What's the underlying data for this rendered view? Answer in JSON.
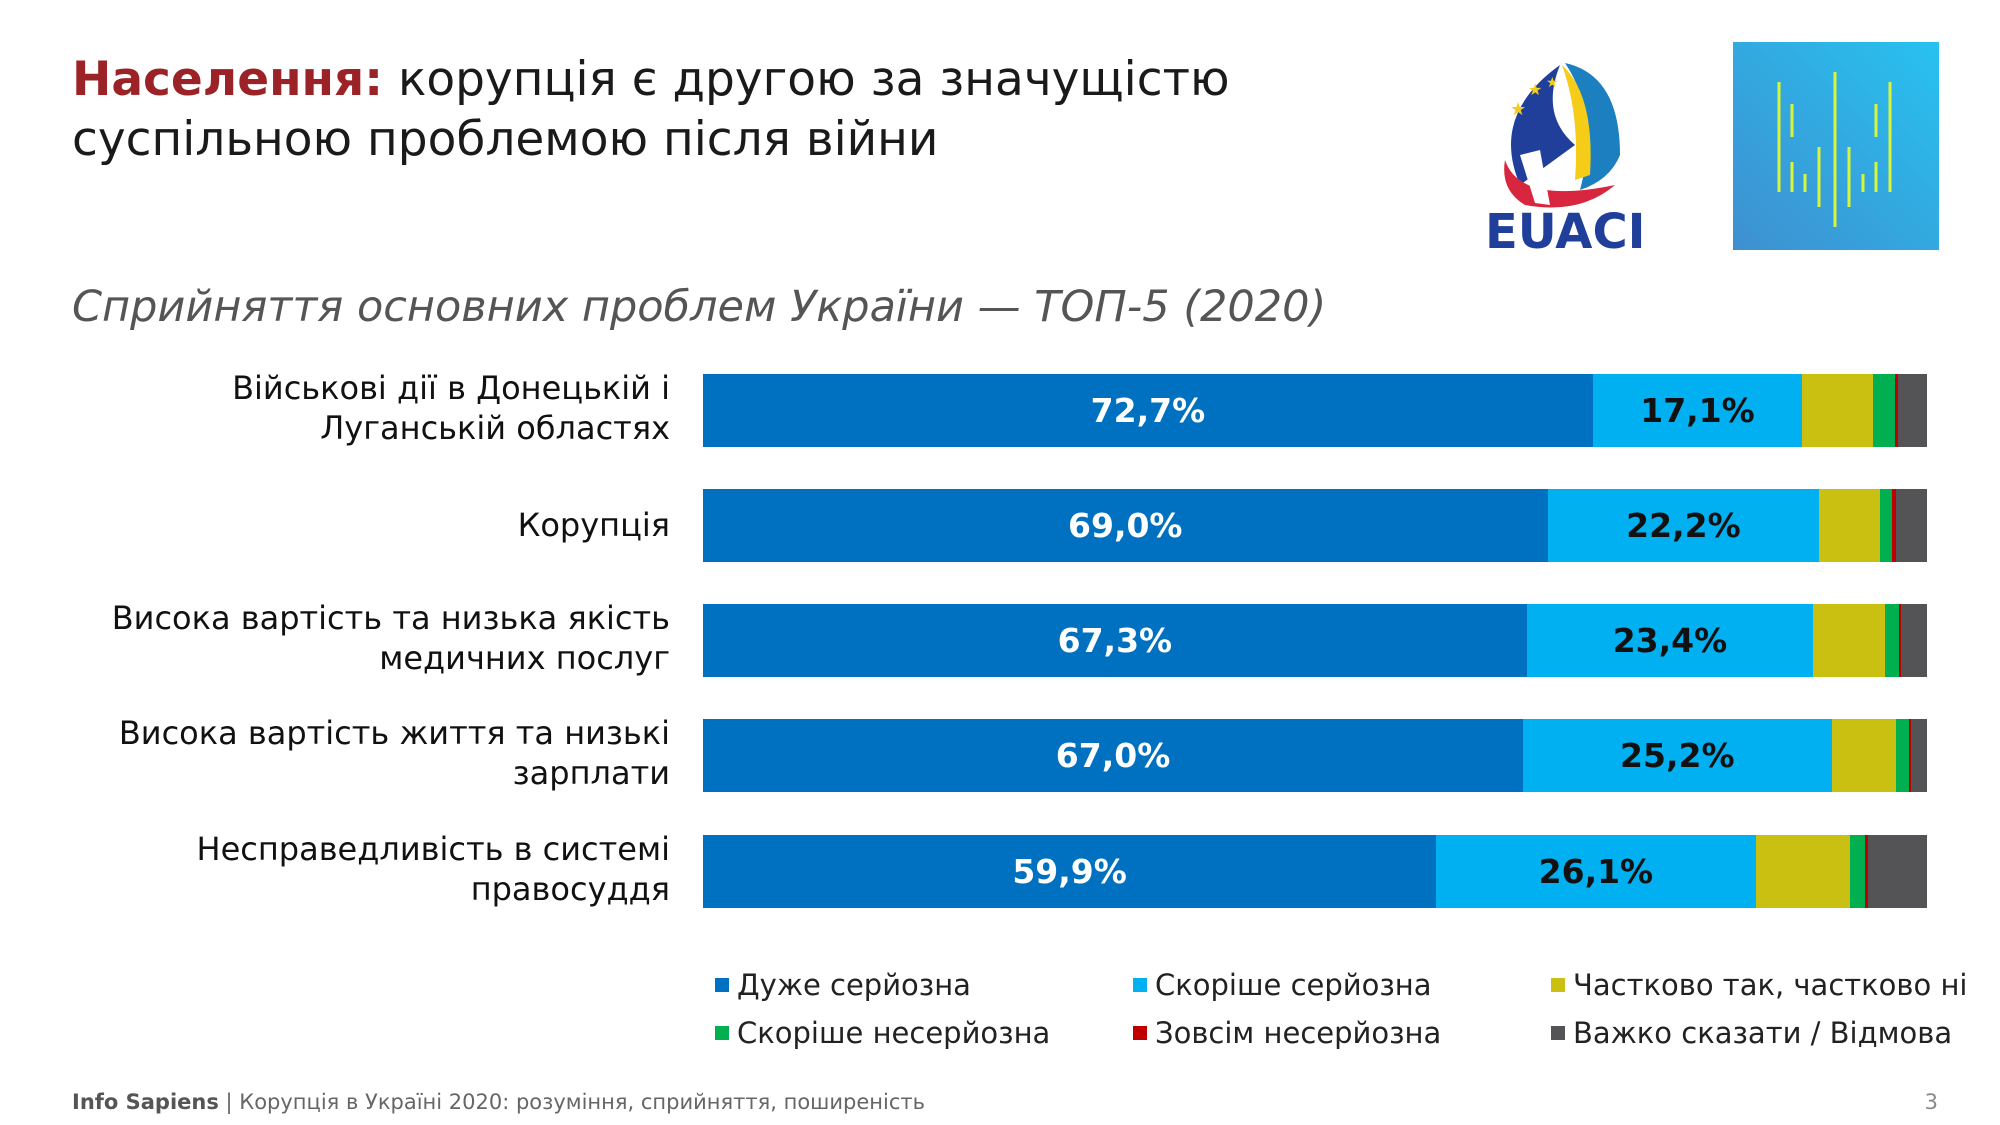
{
  "title": {
    "highlight": "Населення:",
    "rest": " корупція є другою за значущістю суспільною проблемою після війни"
  },
  "logos": {
    "euaci": "EUACI"
  },
  "footer": {
    "brand": "Info Sapiens",
    "separator": " | ",
    "text": "Корупція в Україні 2020: розуміння, сприйняття, поширеність",
    "page": "3"
  },
  "chart_data": {
    "type": "bar",
    "orientation": "horizontal-stacked-100",
    "title": "Сприйняття основних проблем України — ТОП-5 (2020)",
    "categories": [
      "Військові дії в Донецькій і Луганській областях",
      "Корупція",
      "Висока вартість та низька якість медичних послуг",
      "Висока вартість життя та низькі зарплати",
      "Несправедливість в системі правосуддя"
    ],
    "series": [
      {
        "name": "Дуже серйозна",
        "color": "#0070c0",
        "values": [
          72.7,
          69.0,
          67.3,
          67.0,
          59.9
        ],
        "labels": [
          "72,7%",
          "69,0%",
          "67,3%",
          "67,0%",
          "59,9%"
        ]
      },
      {
        "name": "Скоріше серйозна",
        "color": "#00b0f0",
        "values": [
          17.1,
          22.2,
          23.4,
          25.2,
          26.1
        ],
        "labels": [
          "17,1%",
          "22,2%",
          "23,4%",
          "25,2%",
          "26,1%"
        ]
      },
      {
        "name": "Частково так, частково ні",
        "color": "#c9c012",
        "values": [
          5.8,
          5.0,
          5.9,
          5.3,
          7.7
        ]
      },
      {
        "name": "Скоріше несерйозна",
        "color": "#00b050",
        "values": [
          1.8,
          0.9,
          1.1,
          1.0,
          1.2
        ]
      },
      {
        "name": "Зовсім несерйозна",
        "color": "#c00000",
        "values": [
          0.2,
          0.4,
          0.2,
          0.2,
          0.3
        ]
      },
      {
        "name": "Важко сказати / Відмова",
        "color": "#545356",
        "values": [
          2.4,
          2.5,
          2.1,
          1.3,
          4.8
        ]
      }
    ],
    "xlim": [
      0,
      100
    ],
    "legend": "bottom",
    "grid": false
  }
}
